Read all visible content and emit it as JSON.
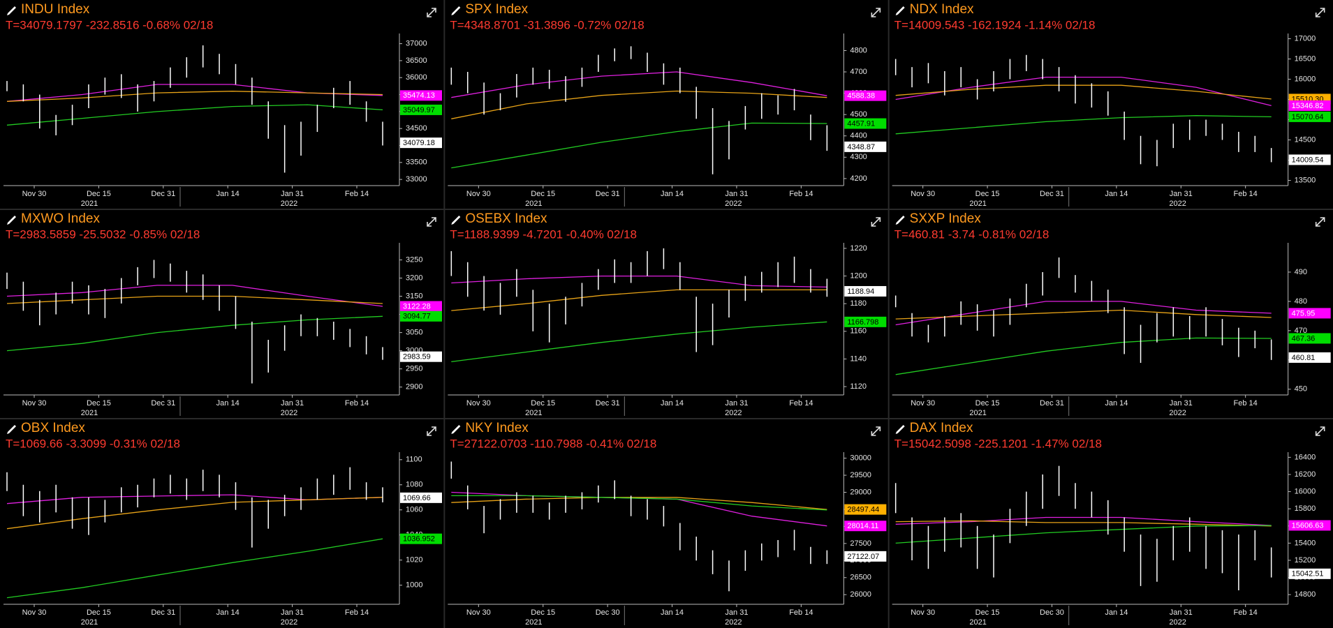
{
  "chart_data": [
    {
      "type": "ohlc",
      "title": "INDU Index",
      "subtitle": "T=34079.1797 -232.8516 -0.68% 02/18",
      "ylim": [
        32900,
        37300
      ],
      "yticks": [
        33000,
        33500,
        34000,
        34500,
        35000,
        35500,
        36000,
        36500,
        37000
      ],
      "xticks": [
        "Nov 30",
        "Dec 15",
        "Dec 31",
        "Jan 14",
        "Jan 31",
        "Feb 14"
      ],
      "years": [
        "2021",
        "2022"
      ],
      "bar_color": "#ffffff",
      "high": [
        35900,
        35800,
        35500,
        34900,
        35200,
        35800,
        36000,
        36100,
        35800,
        35900,
        36300,
        36600,
        36950,
        36700,
        36400,
        36000,
        35300,
        34600,
        34700,
        35200,
        35700,
        35900,
        35300,
        34700
      ],
      "low": [
        35600,
        35300,
        34500,
        34300,
        34600,
        35100,
        35500,
        35400,
        35000,
        35300,
        35700,
        36000,
        36300,
        36100,
        35800,
        35200,
        34200,
        33200,
        33700,
        34400,
        35100,
        35200,
        34700,
        34000
      ],
      "series": [
        {
          "color": "#e020e0",
          "values": [
            35300,
            35500,
            35800,
            35800,
            35550,
            35474.13
          ]
        },
        {
          "color": "#e8a317",
          "values": [
            35300,
            35400,
            35550,
            35600,
            35550,
            35500
          ]
        },
        {
          "color": "#22cc22",
          "values": [
            34600,
            34800,
            35000,
            35150,
            35200,
            35049.97
          ]
        }
      ],
      "tags": [
        {
          "value": 35474.13,
          "color": "#ff00ff"
        },
        {
          "value": 35049.97,
          "color": "#00dd00"
        },
        {
          "value": 34079.18,
          "color": "#ffffff"
        }
      ]
    },
    {
      "type": "ohlc",
      "title": "SPX Index",
      "subtitle": "T=4348.8701 -31.3896 -0.72% 02/18",
      "ylim": [
        4180,
        4880
      ],
      "yticks": [
        4200,
        4300,
        4400,
        4500,
        4600,
        4700,
        4800
      ],
      "xticks": [
        "Nov 30",
        "Dec 15",
        "Dec 31",
        "Jan 14",
        "Jan 31",
        "Feb 14"
      ],
      "years": [
        "2021",
        "2022"
      ],
      "bar_color": "#ffffff",
      "high": [
        4720,
        4700,
        4650,
        4600,
        4690,
        4720,
        4710,
        4680,
        4720,
        4780,
        4810,
        4820,
        4790,
        4740,
        4720,
        4630,
        4530,
        4470,
        4540,
        4600,
        4590,
        4620,
        4500,
        4450
      ],
      "low": [
        4640,
        4600,
        4500,
        4520,
        4580,
        4640,
        4620,
        4560,
        4630,
        4700,
        4750,
        4760,
        4700,
        4640,
        4600,
        4480,
        4220,
        4290,
        4430,
        4480,
        4500,
        4520,
        4380,
        4330
      ],
      "series": [
        {
          "color": "#e020e0",
          "values": [
            4580,
            4640,
            4680,
            4700,
            4650,
            4588.38
          ]
        },
        {
          "color": "#e8a317",
          "values": [
            4480,
            4550,
            4590,
            4610,
            4600,
            4580
          ]
        },
        {
          "color": "#22cc22",
          "values": [
            4250,
            4310,
            4370,
            4420,
            4460,
            4457.91
          ]
        }
      ],
      "tags": [
        {
          "value": 4588.38,
          "color": "#ff00ff"
        },
        {
          "value": 4457.91,
          "color": "#00dd00"
        },
        {
          "value": 4348.87,
          "color": "#ffffff"
        }
      ]
    },
    {
      "type": "ohlc",
      "title": "NDX Index",
      "subtitle": "T=14009.543 -162.1924 -1.14% 02/18",
      "ylim": [
        13440,
        17130
      ],
      "yticks": [
        13500,
        14000,
        14500,
        15000,
        15500,
        16000,
        16500,
        17000
      ],
      "xticks": [
        "Nov 30",
        "Dec 15",
        "Dec 31",
        "Jan 14",
        "Jan 31",
        "Feb 14"
      ],
      "years": [
        "2021",
        "2022"
      ],
      "bar_color": "#ffffff",
      "high": [
        16500,
        16300,
        16400,
        16200,
        16300,
        16000,
        16200,
        16500,
        16600,
        16500,
        16300,
        16100,
        15900,
        15700,
        15200,
        14600,
        14500,
        14900,
        15000,
        15000,
        14900,
        14700,
        14600,
        14300
      ],
      "low": [
        16100,
        15800,
        15900,
        15600,
        15800,
        15500,
        15700,
        16000,
        16200,
        16000,
        15700,
        15400,
        15300,
        15100,
        14500,
        13900,
        13850,
        14300,
        14500,
        14600,
        14500,
        14200,
        14200,
        13950
      ],
      "series": [
        {
          "color": "#e020e0",
          "values": [
            15500,
            15800,
            16050,
            16050,
            15800,
            15346.82
          ]
        },
        {
          "color": "#e8a317",
          "values": [
            15600,
            15750,
            15850,
            15850,
            15700,
            15510.3
          ]
        },
        {
          "color": "#22cc22",
          "values": [
            14650,
            14800,
            14950,
            15050,
            15100,
            15070.64
          ]
        }
      ],
      "tags": [
        {
          "value": 15510.3,
          "label": "15510.30",
          "color": "#ffb000"
        },
        {
          "value": 15346.82,
          "color": "#ff00ff"
        },
        {
          "value": 15070.64,
          "color": "#00dd00"
        },
        {
          "value": 14009.54,
          "color": "#ffffff"
        }
      ]
    },
    {
      "type": "ohlc",
      "title": "MXWO Index",
      "subtitle": "T=2983.5859 -25.5032 -0.85% 02/18",
      "ylim": [
        2886,
        3297
      ],
      "yticks": [
        2900,
        2950,
        3000,
        3050,
        3100,
        3150,
        3200,
        3250
      ],
      "xticks": [
        "Nov 30",
        "Dec 15",
        "Dec 31",
        "Jan 14",
        "Jan 31",
        "Feb 14"
      ],
      "years": [
        "2021",
        "2022"
      ],
      "bar_color": "#ffffff",
      "high": [
        3215,
        3190,
        3140,
        3160,
        3190,
        3180,
        3170,
        3200,
        3230,
        3250,
        3240,
        3220,
        3210,
        3180,
        3150,
        3080,
        3030,
        3070,
        3100,
        3090,
        3080,
        3060,
        3040,
        3010
      ],
      "low": [
        3170,
        3110,
        3070,
        3100,
        3130,
        3100,
        3090,
        3130,
        3180,
        3200,
        3190,
        3160,
        3140,
        3110,
        3060,
        2910,
        2940,
        3000,
        3040,
        3040,
        3030,
        3010,
        2990,
        2975
      ],
      "series": [
        {
          "color": "#e020e0",
          "values": [
            3150,
            3160,
            3180,
            3180,
            3150,
            3122.28
          ]
        },
        {
          "color": "#e8a317",
          "values": [
            3130,
            3140,
            3150,
            3150,
            3140,
            3130
          ]
        },
        {
          "color": "#22cc22",
          "values": [
            3000,
            3020,
            3050,
            3070,
            3085,
            3094.77
          ]
        }
      ],
      "tags": [
        {
          "value": 3122.28,
          "color": "#ff00ff"
        },
        {
          "value": 3094.77,
          "color": "#00dd00"
        },
        {
          "value": 2983.59,
          "color": "#ffffff"
        }
      ]
    },
    {
      "type": "ohlc",
      "title": "OSEBX Index",
      "subtitle": "T=1188.9399 -4.7201 -0.40% 02/18",
      "ylim": [
        1116,
        1224
      ],
      "yticks": [
        1120,
        1140,
        1160,
        1180,
        1200,
        1220
      ],
      "xticks": [
        "Nov 30",
        "Dec 15",
        "Dec 31",
        "Jan 14",
        "Jan 31",
        "Feb 14"
      ],
      "years": [
        "2021",
        "2022"
      ],
      "bar_color": "#ffffff",
      "high": [
        1218,
        1210,
        1200,
        1195,
        1205,
        1190,
        1180,
        1185,
        1195,
        1205,
        1212,
        1210,
        1218,
        1220,
        1210,
        1185,
        1180,
        1190,
        1200,
        1203,
        1210,
        1214,
        1205,
        1198
      ],
      "low": [
        1200,
        1185,
        1175,
        1172,
        1185,
        1160,
        1152,
        1165,
        1178,
        1190,
        1195,
        1195,
        1200,
        1205,
        1190,
        1145,
        1150,
        1170,
        1182,
        1188,
        1192,
        1195,
        1188,
        1185
      ],
      "series": [
        {
          "color": "#e020e0",
          "values": [
            1195,
            1198,
            1200,
            1200,
            1193,
            1192
          ]
        },
        {
          "color": "#e8a317",
          "values": [
            1175,
            1180,
            1186,
            1190,
            1190,
            1190
          ]
        },
        {
          "color": "#22cc22",
          "values": [
            1138,
            1145,
            1152,
            1158,
            1163,
            1166.798
          ]
        }
      ],
      "tags": [
        {
          "value": 1188.94,
          "color": "#ffffff"
        },
        {
          "value": 1166.798,
          "color": "#00dd00"
        }
      ]
    },
    {
      "type": "ohlc",
      "title": "SXXP Index",
      "subtitle": "T=460.81 -3.74 -0.81% 02/18",
      "ylim": [
        449,
        500
      ],
      "yticks": [
        450,
        460,
        470,
        480,
        490
      ],
      "xticks": [
        "Nov 30",
        "Dec 15",
        "Dec 31",
        "Jan 14",
        "Jan 31",
        "Feb 14"
      ],
      "years": [
        "2021",
        "2022"
      ],
      "bar_color": "#ffffff",
      "high": [
        482,
        476,
        472,
        475,
        480,
        479,
        477,
        481,
        486,
        490,
        495,
        489,
        487,
        484,
        478,
        472,
        476,
        478,
        475,
        478,
        474,
        471,
        470,
        467
      ],
      "low": [
        478,
        468,
        466,
        468,
        472,
        470,
        468,
        472,
        478,
        482,
        488,
        483,
        480,
        476,
        462,
        459,
        466,
        468,
        467,
        468,
        465,
        461,
        464,
        460
      ],
      "series": [
        {
          "color": "#e020e0",
          "values": [
            472,
            476,
            480,
            480,
            477,
            475.95
          ]
        },
        {
          "color": "#e8a317",
          "values": [
            474,
            475,
            476,
            477,
            475.5,
            474.5
          ]
        },
        {
          "color": "#22cc22",
          "values": [
            455,
            459,
            463,
            466,
            467.5,
            467.36
          ]
        }
      ],
      "tags": [
        {
          "value": 475.95,
          "color": "#ff00ff"
        },
        {
          "value": 467.36,
          "color": "#00dd00"
        },
        {
          "value": 460.81,
          "color": "#ffffff"
        }
      ]
    },
    {
      "type": "ohlc",
      "title": "OBX Index",
      "subtitle": "T=1069.66 -3.3099 -0.31% 02/18",
      "ylim": [
        987,
        1106
      ],
      "yticks": [
        1000,
        1020,
        1040,
        1060,
        1080,
        1100
      ],
      "xticks": [
        "Nov 30",
        "Dec 15",
        "Dec 31",
        "Jan 14",
        "Jan 31",
        "Feb 14"
      ],
      "years": [
        "2021",
        "2022"
      ],
      "bar_color": "#ffffff",
      "high": [
        1090,
        1080,
        1075,
        1080,
        1070,
        1070,
        1068,
        1078,
        1080,
        1085,
        1088,
        1085,
        1092,
        1088,
        1082,
        1070,
        1068,
        1072,
        1078,
        1085,
        1088,
        1094,
        1082,
        1078
      ],
      "low": [
        1075,
        1055,
        1050,
        1058,
        1045,
        1040,
        1050,
        1058,
        1062,
        1070,
        1073,
        1068,
        1075,
        1070,
        1060,
        1030,
        1045,
        1055,
        1060,
        1068,
        1072,
        1076,
        1068,
        1066
      ],
      "series": [
        {
          "color": "#e020e0",
          "values": [
            1065,
            1070,
            1071,
            1072,
            1068,
            1070
          ]
        },
        {
          "color": "#e8a317",
          "values": [
            1045,
            1053,
            1060,
            1066,
            1068,
            1070
          ]
        },
        {
          "color": "#22cc22",
          "values": [
            990,
            998,
            1008,
            1018,
            1027,
            1036.952
          ]
        }
      ],
      "tags": [
        {
          "value": 1069.66,
          "color": "#ffffff"
        },
        {
          "value": 1036.952,
          "color": "#00dd00"
        }
      ]
    },
    {
      "type": "ohlc",
      "title": "NKY Index",
      "subtitle": "T=27122.0703 -110.7988 -0.41% 02/18",
      "ylim": [
        25800,
        30176
      ],
      "yticks": [
        26000,
        26500,
        27000,
        27500,
        28000,
        28500,
        29000,
        29500,
        30000
      ],
      "xticks": [
        "Nov 30",
        "Dec 15",
        "Dec 30",
        "Jan 14",
        "Jan 31",
        "Feb 14"
      ],
      "years": [
        "2021",
        "2022"
      ],
      "bar_color": "#ffffff",
      "high": [
        29900,
        29200,
        28600,
        28800,
        29000,
        28900,
        28700,
        28900,
        29000,
        29200,
        29350,
        28900,
        28800,
        28600,
        28100,
        27700,
        27300,
        27000,
        27300,
        27500,
        27600,
        27900,
        27400,
        27300
      ],
      "low": [
        29400,
        28500,
        27800,
        28200,
        28400,
        28400,
        28200,
        28400,
        28500,
        28700,
        28800,
        28300,
        28200,
        28000,
        27300,
        27000,
        26600,
        26100,
        26700,
        27000,
        27100,
        27300,
        26900,
        26900
      ],
      "series": [
        {
          "color": "#e020e0",
          "values": [
            29000,
            28900,
            28850,
            28800,
            28300,
            28014.11
          ]
        },
        {
          "color": "#e8a317",
          "values": [
            28700,
            28800,
            28850,
            28850,
            28700,
            28497.44
          ]
        },
        {
          "color": "#22cc22",
          "values": [
            28900,
            28900,
            28850,
            28800,
            28600,
            28480
          ]
        }
      ],
      "tags": [
        {
          "value": 28497.44,
          "color": "#ffb000"
        },
        {
          "value": 28014.11,
          "color": "#ff00ff"
        },
        {
          "value": 27122.07,
          "color": "#ffffff"
        }
      ]
    },
    {
      "type": "ohlc",
      "title": "DAX Index",
      "subtitle": "T=15042.5098 -225.1201 -1.47% 02/18",
      "ylim": [
        14720,
        16460
      ],
      "yticks": [
        14800,
        15000,
        15200,
        15400,
        15600,
        15800,
        16000,
        16200,
        16400
      ],
      "xticks": [
        "Nov 30",
        "Dec 15",
        "Dec 30",
        "Jan 14",
        "Jan 31",
        "Feb 14"
      ],
      "years": [
        "2021",
        "2022"
      ],
      "bar_color": "#ffffff",
      "high": [
        16100,
        15700,
        15600,
        15700,
        15750,
        15600,
        15500,
        15800,
        16000,
        16200,
        16300,
        16100,
        16000,
        15900,
        15700,
        15500,
        15450,
        15600,
        15700,
        15600,
        15550,
        15500,
        15550,
        15350
      ],
      "low": [
        15750,
        15200,
        15100,
        15300,
        15350,
        15100,
        15000,
        15400,
        15600,
        15800,
        15950,
        15800,
        15700,
        15500,
        15300,
        14900,
        14950,
        15200,
        15300,
        15100,
        15050,
        14850,
        15200,
        15000
      ],
      "series": [
        {
          "color": "#e020e0",
          "values": [
            15620,
            15650,
            15700,
            15700,
            15650,
            15606.63
          ]
        },
        {
          "color": "#e8a317",
          "values": [
            15650,
            15660,
            15640,
            15640,
            15620,
            15600
          ]
        },
        {
          "color": "#22cc22",
          "values": [
            15400,
            15460,
            15520,
            15560,
            15600,
            15605
          ]
        }
      ],
      "tags": [
        {
          "value": 15606.63,
          "color": "#ff00ff"
        },
        {
          "value": 15042.51,
          "color": "#ffffff"
        }
      ]
    }
  ]
}
